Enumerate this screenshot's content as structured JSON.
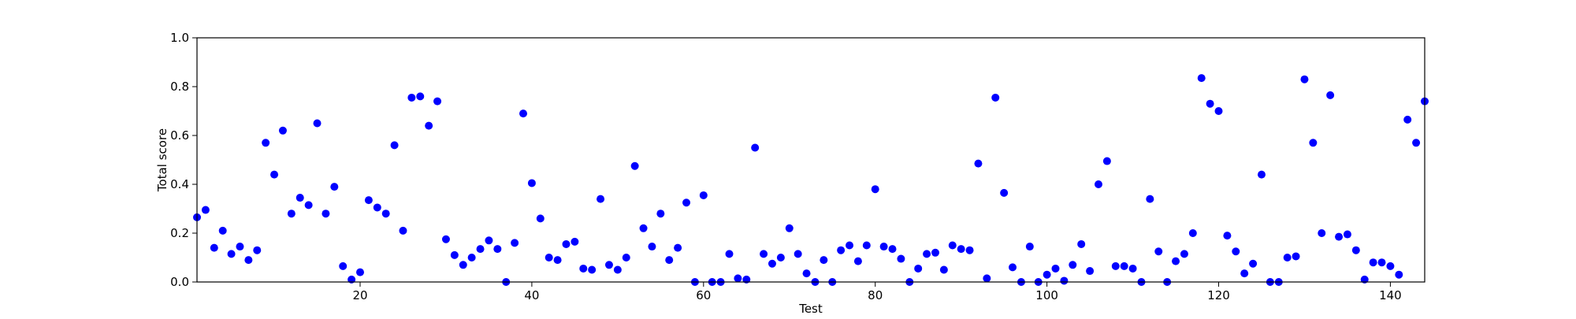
{
  "chart_data": {
    "type": "scatter",
    "xlabel": "Test",
    "ylabel": "Total score",
    "xlim": [
      1,
      144
    ],
    "ylim": [
      0.0,
      1.0
    ],
    "x_ticks": [
      20,
      40,
      60,
      80,
      100,
      120,
      140
    ],
    "y_ticks": [
      0.0,
      0.2,
      0.4,
      0.6,
      0.8,
      1.0
    ],
    "y_tick_labels": [
      "0.0",
      "0.2",
      "0.4",
      "0.6",
      "0.8",
      "1.0"
    ],
    "grid": false,
    "marker_color": "#0000ff",
    "series": [
      {
        "x": [
          1,
          2,
          3,
          4,
          5,
          6,
          7,
          8,
          9,
          10,
          11,
          12,
          13,
          14,
          15,
          16,
          17,
          18,
          19,
          20,
          21,
          22,
          23,
          24,
          25,
          26,
          27,
          28,
          29,
          30,
          31,
          32,
          33,
          34,
          35,
          36,
          37,
          38,
          39,
          40,
          41,
          42,
          43,
          44,
          45,
          46,
          47,
          48,
          49,
          50,
          51,
          52,
          53,
          54,
          55,
          56,
          57,
          58,
          59,
          60,
          61,
          62,
          63,
          64,
          65,
          66,
          67,
          68,
          69,
          70,
          71,
          72,
          73,
          74,
          75,
          76,
          77,
          78,
          79,
          80,
          81,
          82,
          83,
          84,
          85,
          86,
          87,
          88,
          89,
          90,
          91,
          92,
          93,
          94,
          95,
          96,
          97,
          98,
          99,
          100,
          101,
          102,
          103,
          104,
          105,
          106,
          107,
          108,
          109,
          110,
          111,
          112,
          113,
          114,
          115,
          116,
          117,
          118,
          119,
          120,
          121,
          122,
          123,
          124,
          125,
          126,
          127,
          128,
          129,
          130,
          131,
          132,
          133,
          134,
          135,
          136,
          137,
          138,
          139,
          140,
          141,
          142,
          143,
          144
        ],
        "y": [
          0.265,
          0.295,
          0.14,
          0.21,
          0.115,
          0.145,
          0.09,
          0.13,
          0.57,
          0.44,
          0.62,
          0.28,
          0.345,
          0.315,
          0.65,
          0.28,
          0.39,
          0.065,
          0.01,
          0.04,
          0.335,
          0.305,
          0.28,
          0.56,
          0.21,
          0.755,
          0.76,
          0.64,
          0.74,
          0.175,
          0.11,
          0.07,
          0.1,
          0.135,
          0.17,
          0.135,
          0.0,
          0.16,
          0.69,
          0.405,
          0.26,
          0.1,
          0.09,
          0.155,
          0.165,
          0.055,
          0.05,
          0.34,
          0.07,
          0.05,
          0.1,
          0.475,
          0.22,
          0.145,
          0.28,
          0.09,
          0.14,
          0.325,
          0.0,
          0.355,
          0.0,
          0.0,
          0.115,
          0.015,
          0.01,
          0.55,
          0.115,
          0.075,
          0.1,
          0.22,
          0.115,
          0.035,
          0.0,
          0.09,
          0.0,
          0.13,
          0.15,
          0.085,
          0.15,
          0.38,
          0.145,
          0.135,
          0.095,
          0.0,
          0.055,
          0.115,
          0.12,
          0.05,
          0.15,
          0.135,
          0.13,
          0.485,
          0.015,
          0.755,
          0.365,
          0.06,
          0.0,
          0.145,
          0.0,
          0.03,
          0.055,
          0.005,
          0.07,
          0.155,
          0.045,
          0.4,
          0.495,
          0.065,
          0.065,
          0.055,
          0.0,
          0.34,
          0.125,
          0.0,
          0.085,
          0.115,
          0.2,
          0.835,
          0.73,
          0.7,
          0.19,
          0.125,
          0.035,
          0.075,
          0.44,
          0.0,
          0.0,
          0.1,
          0.105,
          0.83,
          0.57,
          0.2,
          0.765,
          0.185,
          0.195,
          0.13,
          0.01,
          0.08,
          0.08,
          0.065,
          0.03,
          0.665,
          0.57,
          0.74
        ]
      }
    ]
  }
}
